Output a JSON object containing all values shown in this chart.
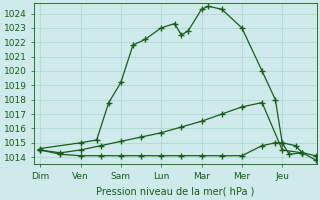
{
  "xlabel": "Pression niveau de la mer( hPa )",
  "bg_color": "#ceeaea",
  "grid_color": "#aad4d4",
  "line_color": "#1a5c1a",
  "ylim": [
    1013.5,
    1024.7
  ],
  "yticks": [
    1014,
    1015,
    1016,
    1017,
    1018,
    1019,
    1020,
    1021,
    1022,
    1023,
    1024
  ],
  "days": [
    "Dim",
    "Ven",
    "Sam",
    "Lun",
    "Mar",
    "Mer",
    "Jeu"
  ],
  "day_positions": [
    0,
    1,
    2,
    3,
    4,
    5,
    6
  ],
  "xlim": [
    -0.15,
    6.85
  ],
  "s1_x": [
    0.0,
    1.0,
    1.4,
    1.7,
    2.0,
    2.3,
    2.6,
    3.0,
    3.33,
    3.5,
    3.67,
    4.0,
    4.17,
    4.5,
    5.0,
    5.5,
    5.83,
    6.0,
    6.17,
    6.5,
    6.83
  ],
  "s1_y": [
    1014.6,
    1015.0,
    1015.2,
    1017.8,
    1019.2,
    1021.8,
    1022.2,
    1023.0,
    1023.3,
    1022.5,
    1022.8,
    1024.3,
    1024.5,
    1024.3,
    1023.0,
    1020.0,
    1018.0,
    1015.0,
    1014.2,
    1014.3,
    1014.1
  ],
  "s2_x": [
    0.0,
    0.5,
    1.0,
    1.5,
    2.0,
    2.5,
    3.0,
    3.5,
    4.0,
    4.5,
    5.0,
    5.5,
    6.0,
    6.5
  ],
  "s2_y": [
    1014.5,
    1014.3,
    1014.5,
    1014.8,
    1015.1,
    1015.4,
    1015.7,
    1016.1,
    1016.5,
    1017.0,
    1017.5,
    1017.8,
    1014.5,
    1014.3
  ],
  "s3_x": [
    0.0,
    0.5,
    1.0,
    1.5,
    2.0,
    2.5,
    3.0,
    3.5,
    4.0,
    4.5,
    5.0,
    5.5,
    5.83,
    6.0,
    6.33,
    6.5,
    6.83
  ],
  "s3_y": [
    1014.5,
    1014.2,
    1014.1,
    1014.1,
    1014.1,
    1014.1,
    1014.1,
    1014.1,
    1014.1,
    1014.1,
    1014.1,
    1014.8,
    1015.0,
    1015.0,
    1014.8,
    1014.3,
    1013.8
  ],
  "marker": "+",
  "marker_size": 4,
  "linewidth": 0.9
}
